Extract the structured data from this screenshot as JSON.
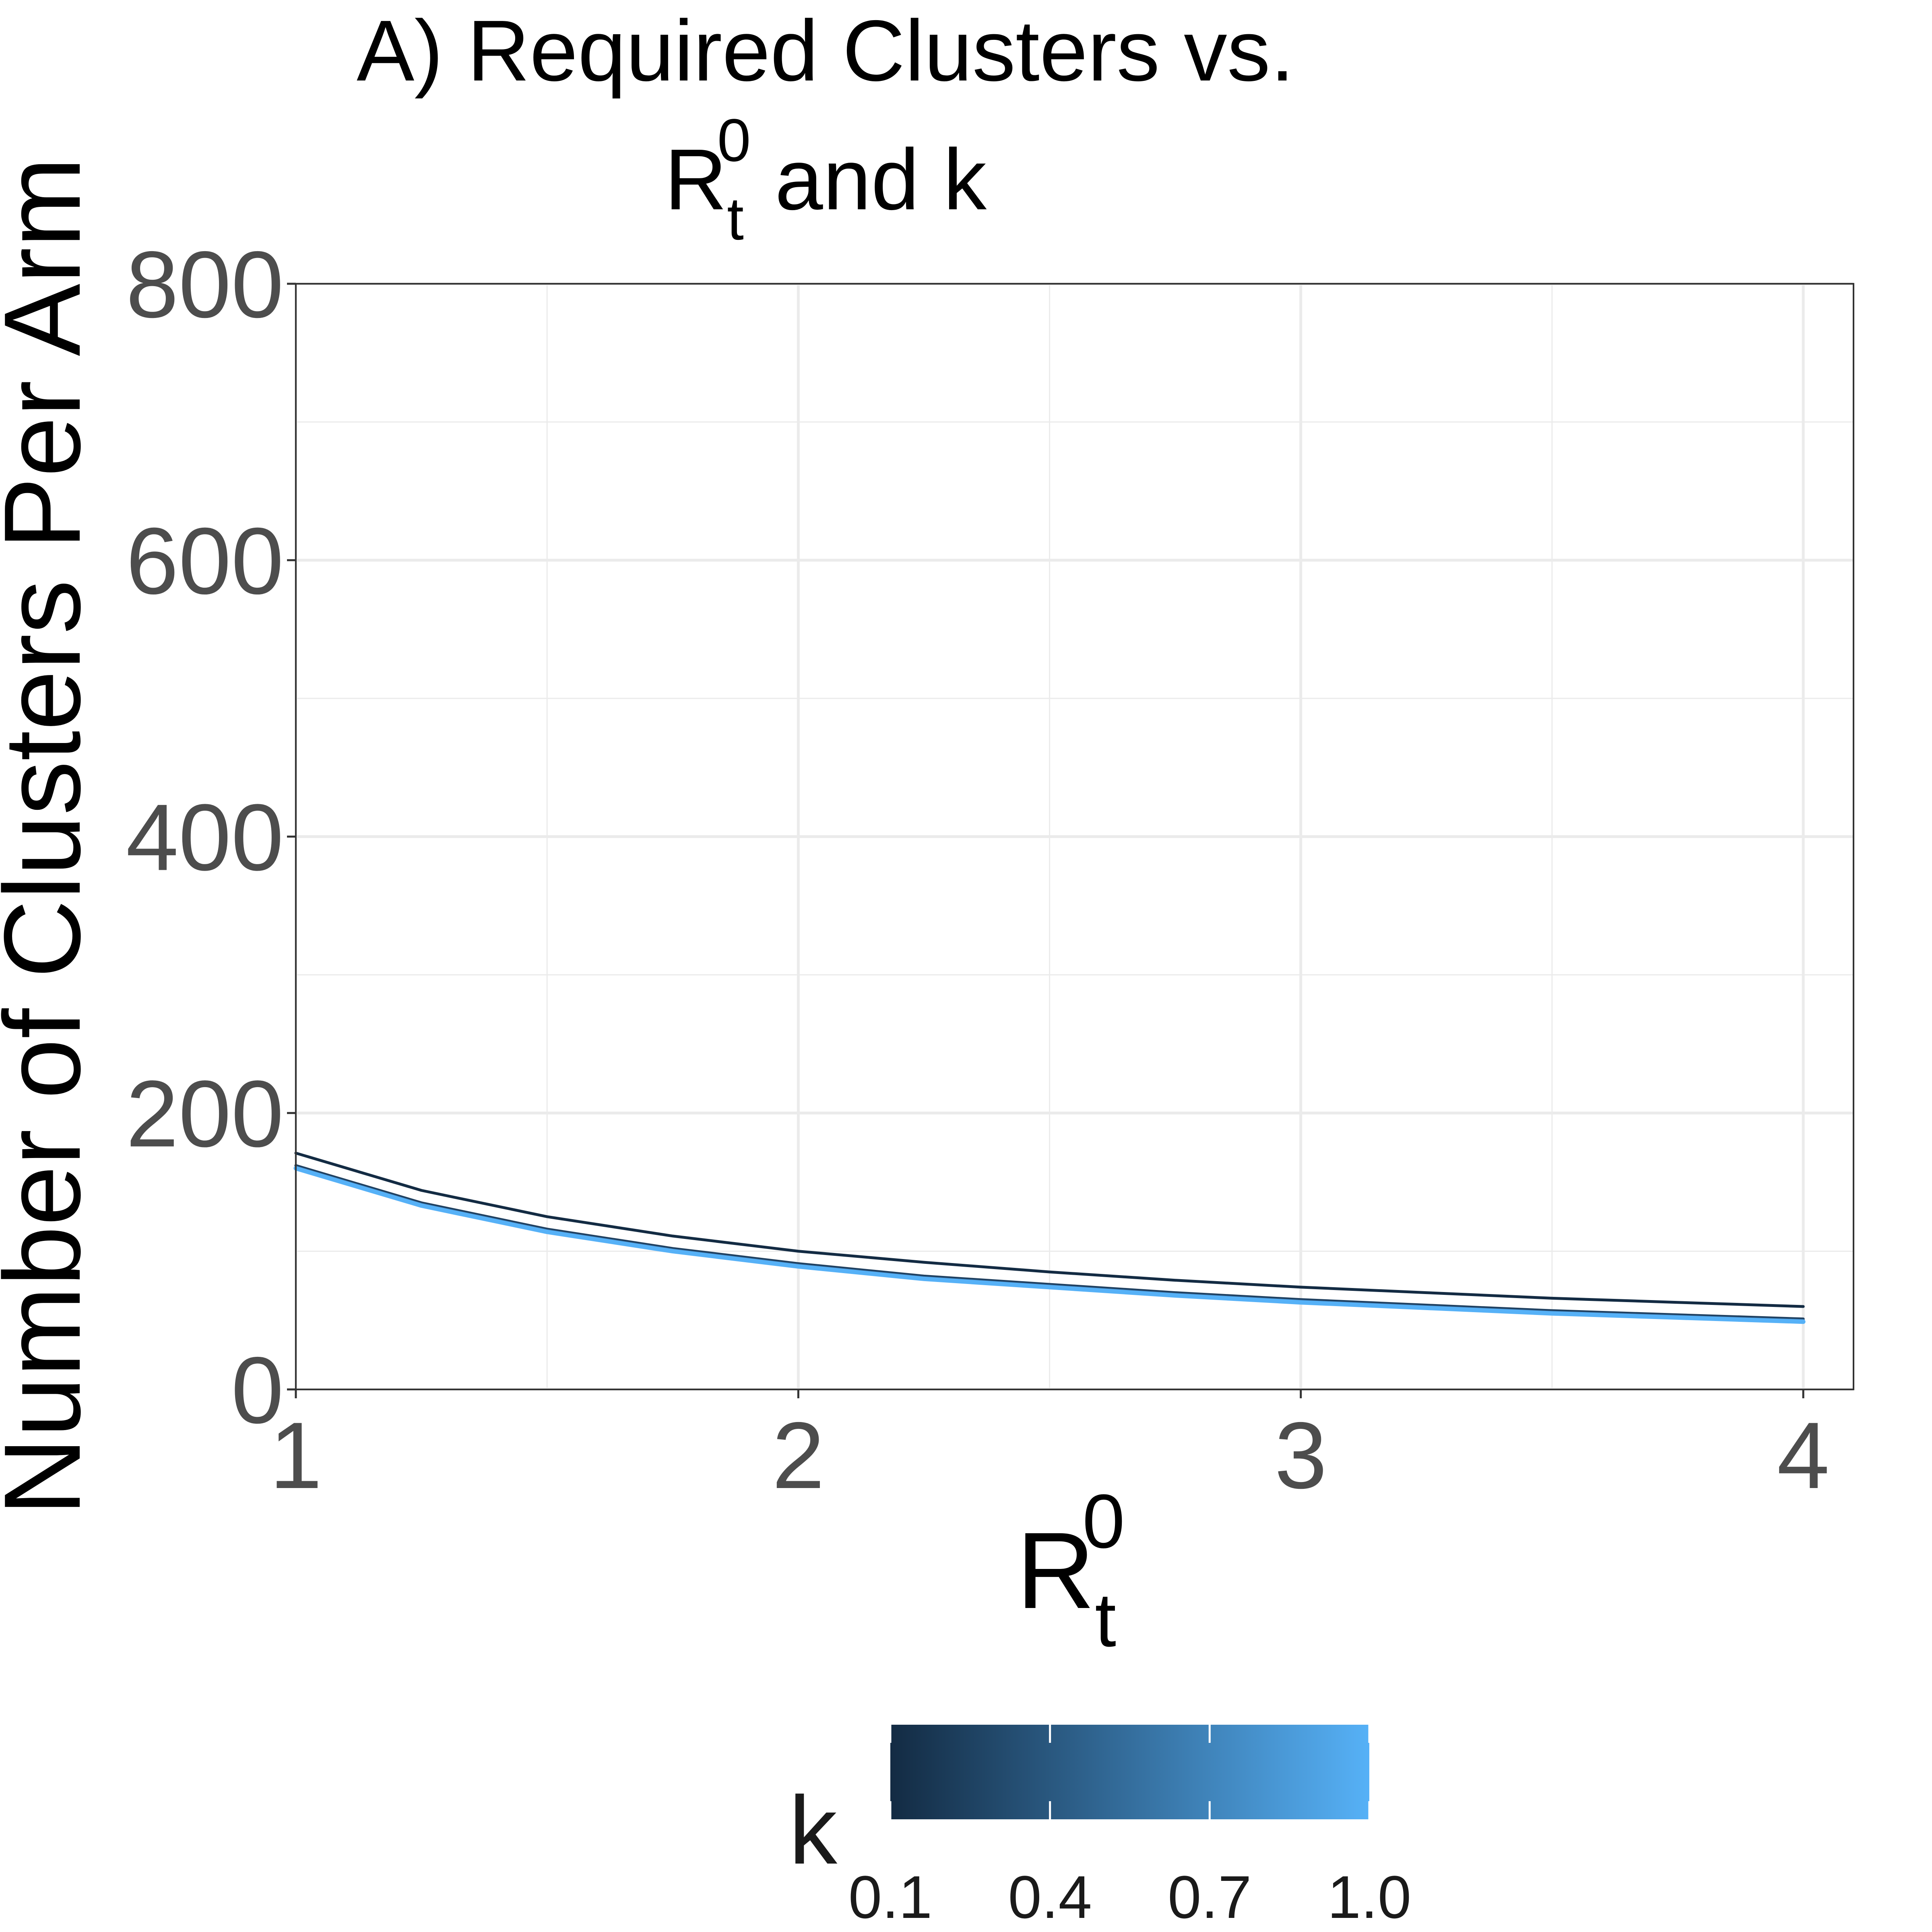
{
  "chart_data": {
    "type": "line",
    "title": {
      "line1": "A) Required Clusters vs.",
      "line2_base": "R",
      "line2_sub": "t",
      "line2_sup": "0",
      "line2_rest": " and k"
    },
    "xlabel": {
      "base": "R",
      "sub": "t",
      "sup": "0"
    },
    "ylabel": "Number of Clusters Per Arm",
    "xlim": [
      1,
      4.1
    ],
    "ylim": [
      0,
      800
    ],
    "x_ticks": [
      1,
      2,
      3,
      4
    ],
    "x_tick_labels": [
      "1",
      "2",
      "3",
      "4"
    ],
    "y_ticks": [
      0,
      200,
      400,
      600,
      800
    ],
    "y_tick_labels": [
      "0",
      "200",
      "400",
      "600",
      "800"
    ],
    "grid": true,
    "x": [
      1.0,
      1.25,
      1.5,
      1.75,
      2.0,
      2.25,
      2.5,
      2.75,
      3.0,
      3.25,
      3.5,
      3.75,
      4.0
    ],
    "series": [
      {
        "k": 0.1,
        "color": "#132B43",
        "values": [
          171,
          144,
          125,
          111,
          100,
          92,
          85,
          79,
          74,
          70,
          66,
          63,
          60
        ]
      },
      {
        "k": 0.4,
        "color": "#1E3F5F",
        "values": [
          162,
          135,
          116,
          102,
          91,
          82,
          76,
          70,
          65,
          61,
          57,
          54,
          51
        ]
      },
      {
        "k": 0.7,
        "color": "#2D5A85",
        "values": [
          161,
          134,
          115,
          101,
          90,
          81,
          75,
          69,
          64,
          60,
          56,
          53,
          50
        ]
      },
      {
        "k": 1.0,
        "color": "#56B1F7",
        "values": [
          160,
          133,
          114,
          100,
          89,
          80,
          74,
          68,
          63,
          59,
          55,
          52,
          49
        ]
      }
    ],
    "legend": {
      "title": "k",
      "placement": "bottom",
      "type": "colorbar",
      "low_color": "#132B43",
      "high_color": "#56B1F7",
      "range": [
        0.1,
        1.0
      ],
      "ticks": [
        0.1,
        0.4,
        0.7,
        1.0
      ],
      "tick_labels": [
        "0.1",
        "0.4",
        "0.7",
        "1.0"
      ]
    }
  }
}
